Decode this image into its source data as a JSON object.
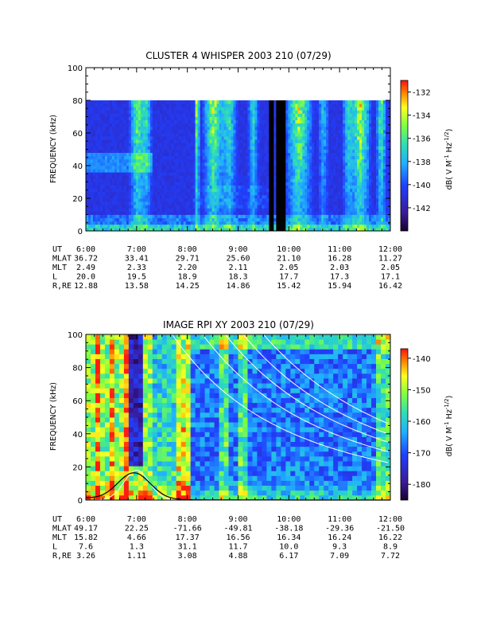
{
  "chart_data": [
    {
      "type": "heatmap",
      "title": "CLUSTER 4 WHISPER 2003 210 (07/29)",
      "xlabel": "",
      "ylabel": "FREQUENCY (kHz)",
      "colorbar_label": "dB( V M⁻¹ Hz⁻¹ᐟ²)",
      "colorbar_label_main": "dB( V M",
      "colorbar_label_exp1": "-1",
      "colorbar_label_mid": " Hz",
      "colorbar_label_exp2": "-1/2",
      "colorbar_label_end": ")",
      "xlim": [
        "6:00",
        "12:00"
      ],
      "ylim": [
        0,
        100
      ],
      "data_ylim": [
        0,
        80
      ],
      "ytick_labels": [
        "0",
        "20",
        "40",
        "60",
        "80",
        "100"
      ],
      "ytick_values": [
        0,
        20,
        40,
        60,
        80,
        100
      ],
      "zlim": [
        -144,
        -131
      ],
      "colorbar_ticks": [
        -132,
        -134,
        -136,
        -138,
        -140,
        -142
      ],
      "colorbar_tick_labels": [
        "-132",
        "-134",
        "-136",
        "-138",
        "-140",
        "-142"
      ],
      "data_gaps": [
        [
          "9:36",
          "9:42"
        ],
        [
          "9:45",
          "9:55"
        ]
      ],
      "orbit": {
        "row_labels": [
          "UT",
          "MLAT",
          "MLT",
          "L",
          "R,RE"
        ],
        "times": [
          "6:00",
          "7:00",
          "8:00",
          "9:00",
          "10:00",
          "11:00",
          "12:00"
        ],
        "MLAT": [
          "36.72",
          "33.41",
          "29.71",
          "25.60",
          "21.10",
          "16.28",
          "11.27"
        ],
        "MLT": [
          "2.49",
          "2.33",
          "2.20",
          "2.11",
          "2.05",
          "2.03",
          "2.05"
        ],
        "L": [
          "20.0",
          "19.5",
          "18.9",
          "18.3",
          "17.7",
          "17.3",
          "17.1"
        ],
        "R,RE": [
          "12.88",
          "13.58",
          "14.25",
          "14.86",
          "15.42",
          "15.94",
          "16.42"
        ]
      }
    },
    {
      "type": "heatmap",
      "title": "IMAGE RPI XY 2003 210 (07/29)",
      "xlabel": "",
      "ylabel": "FREQUENCY (kHz)",
      "colorbar_label": "dB( V M⁻¹ Hz⁻¹ᐟ²)",
      "colorbar_label_main": "dB( V M",
      "colorbar_label_exp1": "-1",
      "colorbar_label_mid": " Hz",
      "colorbar_label_exp2": "-1/2",
      "colorbar_label_end": ")",
      "xlim": [
        "6:00",
        "12:00"
      ],
      "ylim": [
        0,
        100
      ],
      "ytick_labels": [
        "0",
        "20",
        "40",
        "60",
        "80",
        "100"
      ],
      "ytick_values": [
        0,
        20,
        40,
        60,
        80,
        100
      ],
      "zlim": [
        -185,
        -137
      ],
      "colorbar_ticks": [
        -140,
        -150,
        -160,
        -170,
        -180
      ],
      "colorbar_tick_labels": [
        "-140",
        "-150",
        "-160",
        "-170",
        "-180"
      ],
      "overlay_lines": "white curves (resonance/harmonic frequencies) and black curve (local plasma frequency), peaking near 7:00 at about 17 kHz",
      "orbit": {
        "row_labels": [
          "UT",
          "MLAT",
          "MLT",
          "L",
          "R,RE"
        ],
        "times": [
          "6:00",
          "7:00",
          "8:00",
          "9:00",
          "10:00",
          "11:00",
          "12:00"
        ],
        "MLAT": [
          "49.17",
          "22.25",
          "-71.66",
          "-49.81",
          "-38.18",
          "-29.36",
          "-21.50"
        ],
        "MLT": [
          "15.82",
          "4.66",
          "17.37",
          "16.56",
          "16.34",
          "16.24",
          "16.22"
        ],
        "L": [
          "7.6",
          "1.3",
          "31.1",
          "11.7",
          "10.0",
          "9.3",
          "8.9"
        ],
        "R,RE": [
          "3.26",
          "1.11",
          "3.08",
          "4.88",
          "6.17",
          "7.09",
          "7.72"
        ]
      }
    }
  ]
}
